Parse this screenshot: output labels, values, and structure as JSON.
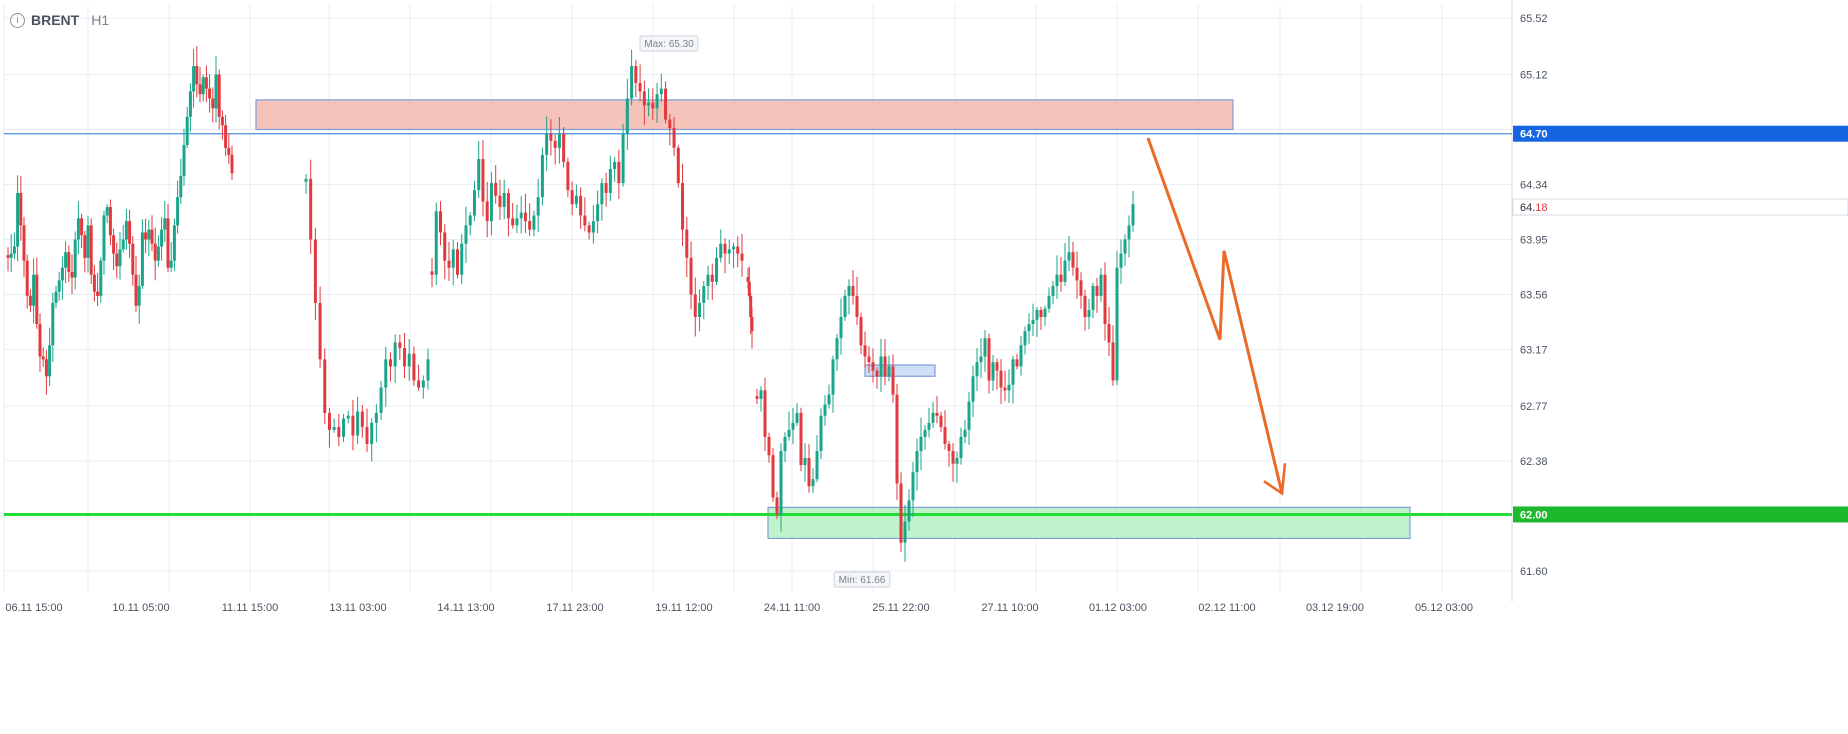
{
  "header": {
    "symbol": "BRENT",
    "timeframe": "H1",
    "info_icon": "info-icon"
  },
  "colors": {
    "up": "#1aa58a",
    "down": "#e0393e",
    "grid": "#e9eef5",
    "resistance_zone": "#f3b8ad",
    "support_zone": "#b5f0c2",
    "support_line": "#22dd33",
    "resistance_line": "#4a8fdc",
    "projection": "#ec6a27",
    "price_tag": "#1565e3",
    "support_tag": "#1db92d"
  },
  "chart_data": {
    "type": "candlestick",
    "instrument": "BRENT",
    "timeframe": "H1",
    "ylim": [
      61.45,
      65.62
    ],
    "y_ticks": [
      "65.52",
      "65.12",
      "64.34",
      "63.95",
      "63.56",
      "63.17",
      "62.77",
      "62.38",
      "61.60"
    ],
    "x_ticks": [
      "06.11 15:00",
      "10.11 05:00",
      "11.11 15:00",
      "13.11 03:00",
      "14.11 13:00",
      "17.11 23:00",
      "19.11 12:00",
      "24.11 11:00",
      "25.11 22:00",
      "27.11 10:00",
      "01.12 03:00",
      "02.12 11:00",
      "03.12 19:00",
      "05.12 03:00"
    ],
    "max_label": "Max: 65.30",
    "min_label": "Min: 61.66",
    "current_price": {
      "int": "64.",
      "dec": "18",
      "value": 64.18
    },
    "levels": [
      {
        "name": "resistance",
        "value": 64.7,
        "label": "64.70"
      },
      {
        "name": "support",
        "value": 62.0,
        "label": "62.00"
      }
    ],
    "zones": [
      {
        "name": "resistance-zone",
        "y_low": 64.73,
        "y_high": 64.94,
        "x_start": "11.11 15:00",
        "x_end": "02.12 11:00"
      },
      {
        "name": "small-zone",
        "y_low": 62.98,
        "y_high": 63.06,
        "x_start": "25.11 22:00",
        "x_end": "26.11 12:00"
      },
      {
        "name": "support-zone",
        "y_low": 61.83,
        "y_high": 62.05,
        "x_start": "24.11 11:00",
        "x_end": "04.12 12:00"
      }
    ],
    "projection": [
      {
        "t": 0.0,
        "value": 64.67
      },
      {
        "t": 0.72,
        "value": 63.24
      },
      {
        "t": 0.76,
        "value": 63.87
      },
      {
        "t": 1.34,
        "value": 62.15
      }
    ],
    "segments": [
      {
        "closes": [
          63.82,
          63.85,
          63.9,
          64.28,
          64.05,
          63.8,
          63.55,
          63.48,
          63.7,
          63.35,
          63.12,
          63.1,
          62.98,
          63.2,
          63.5,
          63.58,
          63.66,
          63.75,
          63.86,
          63.72,
          63.68,
          63.95,
          64.1,
          63.98,
          63.82,
          64.05,
          63.7,
          63.58,
          63.55,
          63.8,
          64.12,
          64.18,
          63.98,
          63.85,
          63.76,
          63.88,
          63.95,
          64.08,
          63.92,
          63.7,
          63.48,
          63.62,
          64.0,
          63.95,
          64.02,
          63.92,
          63.8,
          63.9,
          64.02,
          64.1,
          63.75,
          63.8,
          64.05,
          64.25,
          64.4,
          64.62,
          64.82,
          65.0,
          65.18,
          65.05,
          64.98,
          65.1,
          65.02,
          64.95,
          64.88,
          65.12,
          64.82,
          64.76,
          64.6,
          64.55,
          64.42
        ]
      },
      {
        "closes": [
          64.38,
          63.95,
          63.5,
          63.1,
          62.72,
          62.6,
          62.62,
          62.55,
          62.68,
          62.7,
          62.56,
          62.73,
          62.62,
          62.5,
          62.65,
          62.72,
          62.9,
          63.1,
          63.05,
          63.22,
          63.18,
          63.05,
          63.14,
          62.95,
          62.9,
          62.95,
          63.1
        ]
      },
      {
        "closes": [
          63.7,
          64.15,
          64.0,
          63.8,
          63.75,
          63.88,
          63.7,
          63.92,
          64.05,
          64.12,
          64.3,
          64.52,
          64.22,
          64.08,
          64.35,
          64.26,
          64.18,
          64.28,
          64.1,
          64.05,
          64.1,
          64.14,
          64.08,
          64.02,
          64.12,
          64.25,
          64.55,
          64.7,
          64.65,
          64.6,
          64.7,
          64.5,
          64.3,
          64.2,
          64.26,
          64.12,
          64.05,
          64.0,
          64.08,
          64.2,
          64.35,
          64.28,
          64.45,
          64.5,
          64.35,
          64.7,
          64.95,
          65.18,
          65.06,
          65.0,
          64.9,
          64.92,
          64.88,
          64.98,
          65.02,
          64.8,
          64.74,
          64.6,
          64.35,
          64.02,
          63.82,
          63.56,
          63.4,
          63.5,
          63.62,
          63.7,
          63.65,
          63.82,
          63.92,
          63.85,
          63.88,
          63.9,
          63.85,
          63.8
        ]
      },
      {
        "closes": [
          63.65,
          63.55,
          63.4,
          63.3
        ]
      },
      {
        "closes": [
          62.82,
          62.88,
          62.55,
          62.42,
          62.12,
          62.0,
          62.45,
          62.55,
          62.6,
          62.65,
          62.72,
          62.35,
          62.4,
          62.2,
          62.25,
          62.45,
          62.7,
          62.78,
          62.85,
          63.1,
          63.25,
          63.4,
          63.55,
          63.62,
          63.55,
          63.4,
          63.2,
          63.12,
          63.08,
          63.02,
          62.98,
          63.12,
          62.98,
          63.05,
          62.85,
          62.22,
          61.8,
          61.95,
          62.1,
          62.3,
          62.45,
          62.55,
          62.6,
          62.65,
          62.72,
          62.7,
          62.62,
          62.5,
          62.45,
          62.36,
          62.4,
          62.55,
          62.6,
          62.8,
          62.98,
          63.08,
          63.12,
          63.25,
          62.95,
          63.08,
          63.02,
          62.9,
          62.88,
          62.92,
          63.1,
          63.05,
          63.2,
          63.3,
          63.35,
          63.38,
          63.45,
          63.4,
          63.46,
          63.55,
          63.62,
          63.7,
          63.65,
          63.8,
          63.86,
          63.75,
          63.66,
          63.55,
          63.4,
          63.45,
          63.62,
          63.55,
          63.7,
          63.35,
          63.22,
          62.95,
          63.75,
          63.85,
          63.95,
          64.05,
          64.2
        ]
      }
    ]
  }
}
